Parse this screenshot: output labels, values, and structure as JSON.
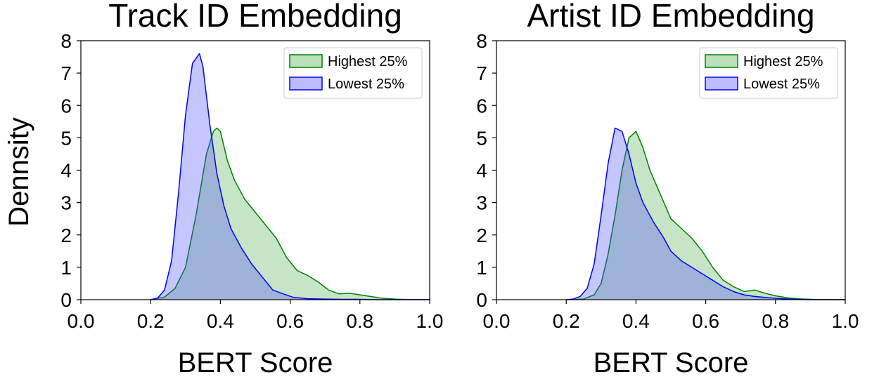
{
  "figure": {
    "ylabel": "Dennsity"
  },
  "colors": {
    "highest_fill": "#2ca02c",
    "highest_line": "#008000",
    "lowest_fill": "#4040ff",
    "lowest_line": "#0000ff"
  },
  "chart_data": [
    {
      "type": "area",
      "title": "Track ID Embedding",
      "xlabel": "BERT Score",
      "ylabel": "Dennsity",
      "xlim": [
        0.0,
        1.0
      ],
      "ylim": [
        0,
        8
      ],
      "xticks": [
        "0.0",
        "0.2",
        "0.4",
        "0.6",
        "0.8",
        "1.0"
      ],
      "yticks": [
        "0",
        "1",
        "2",
        "3",
        "4",
        "5",
        "6",
        "7",
        "8"
      ],
      "legend_position": "top-right",
      "series": [
        {
          "name": "Highest 25%",
          "x": [
            0.2,
            0.24,
            0.27,
            0.3,
            0.33,
            0.36,
            0.38,
            0.39,
            0.4,
            0.42,
            0.44,
            0.47,
            0.5,
            0.53,
            0.56,
            0.59,
            0.62,
            0.65,
            0.68,
            0.71,
            0.74,
            0.77,
            0.8,
            0.83,
            0.86,
            0.9,
            0.95,
            1.0
          ],
          "y": [
            0.0,
            0.08,
            0.35,
            1.0,
            2.6,
            4.5,
            5.2,
            5.3,
            5.2,
            4.3,
            3.7,
            3.1,
            2.7,
            2.3,
            1.9,
            1.3,
            0.9,
            0.75,
            0.55,
            0.3,
            0.18,
            0.2,
            0.15,
            0.1,
            0.05,
            0.02,
            0.0,
            0.0
          ]
        },
        {
          "name": "Lowest 25%",
          "x": [
            0.2,
            0.22,
            0.24,
            0.26,
            0.28,
            0.3,
            0.32,
            0.34,
            0.35,
            0.37,
            0.39,
            0.41,
            0.43,
            0.46,
            0.49,
            0.52,
            0.55,
            0.58,
            0.61,
            0.65,
            0.7,
            0.75,
            0.8,
            0.85,
            0.9,
            0.95,
            1.0
          ],
          "y": [
            0.0,
            0.05,
            0.3,
            1.2,
            3.3,
            5.7,
            7.3,
            7.6,
            7.2,
            5.4,
            3.9,
            2.9,
            2.2,
            1.6,
            1.1,
            0.7,
            0.3,
            0.18,
            0.07,
            0.03,
            0.02,
            0.01,
            0.01,
            0.0,
            0.0,
            0.0,
            0.0
          ]
        }
      ]
    },
    {
      "type": "area",
      "title": "Artist ID Embedding",
      "xlabel": "BERT Score",
      "ylabel": "",
      "xlim": [
        0.0,
        1.0
      ],
      "ylim": [
        0,
        8
      ],
      "xticks": [
        "0.0",
        "0.2",
        "0.4",
        "0.6",
        "0.8",
        "1.0"
      ],
      "yticks": [
        "0",
        "1",
        "2",
        "3",
        "4",
        "5",
        "6",
        "7",
        "8"
      ],
      "legend_position": "top-right",
      "series": [
        {
          "name": "Highest 25%",
          "x": [
            0.2,
            0.25,
            0.28,
            0.3,
            0.32,
            0.34,
            0.36,
            0.38,
            0.4,
            0.42,
            0.44,
            0.46,
            0.48,
            0.5,
            0.53,
            0.56,
            0.59,
            0.62,
            0.65,
            0.68,
            0.71,
            0.74,
            0.77,
            0.8,
            0.84,
            0.88,
            0.93,
            1.0
          ],
          "y": [
            0.0,
            0.02,
            0.15,
            0.5,
            1.4,
            2.6,
            4.0,
            5.0,
            5.2,
            4.7,
            4.0,
            3.5,
            3.0,
            2.5,
            2.2,
            1.9,
            1.5,
            1.0,
            0.6,
            0.4,
            0.25,
            0.3,
            0.2,
            0.12,
            0.05,
            0.02,
            0.0,
            0.0
          ]
        },
        {
          "name": "Lowest 25%",
          "x": [
            0.2,
            0.22,
            0.24,
            0.26,
            0.28,
            0.3,
            0.32,
            0.34,
            0.36,
            0.38,
            0.4,
            0.42,
            0.45,
            0.48,
            0.5,
            0.53,
            0.56,
            0.59,
            0.62,
            0.65,
            0.68,
            0.71,
            0.74,
            0.78,
            0.82,
            0.86,
            0.9,
            0.95,
            1.0
          ],
          "y": [
            0.0,
            0.02,
            0.1,
            0.35,
            1.1,
            2.6,
            4.2,
            5.3,
            5.2,
            4.5,
            3.6,
            3.0,
            2.4,
            1.9,
            1.5,
            1.2,
            1.0,
            0.8,
            0.6,
            0.4,
            0.25,
            0.15,
            0.1,
            0.06,
            0.03,
            0.01,
            0.0,
            0.0,
            0.0
          ]
        }
      ]
    }
  ]
}
